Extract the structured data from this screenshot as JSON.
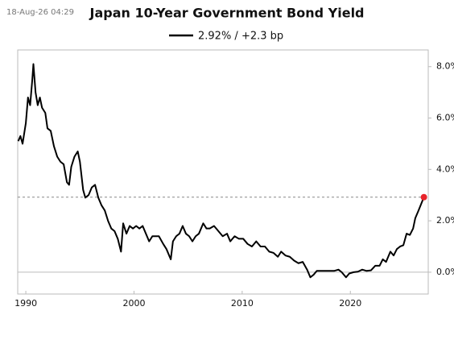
{
  "timestamp": "18-Aug-26 04:29",
  "chart_data": {
    "type": "line",
    "title": "Japan 10-Year Government Bond Yield",
    "series": [
      {
        "name": "2.92% / +2.3 bp",
        "color": "#000000",
        "x": [
          1989.3,
          1989.5,
          1989.7,
          1990.0,
          1990.2,
          1990.4,
          1990.6,
          1990.7,
          1990.9,
          1991.1,
          1991.3,
          1991.5,
          1991.8,
          1992.0,
          1992.3,
          1992.6,
          1992.9,
          1993.2,
          1993.5,
          1993.8,
          1994.0,
          1994.2,
          1994.5,
          1994.8,
          1995.0,
          1995.3,
          1995.5,
          1995.8,
          1996.1,
          1996.4,
          1996.7,
          1997.0,
          1997.3,
          1997.6,
          1997.9,
          1998.2,
          1998.5,
          1998.8,
          1999.0,
          1999.3,
          1999.6,
          1999.9,
          2000.2,
          2000.5,
          2000.8,
          2001.1,
          2001.4,
          2001.7,
          2002.0,
          2002.3,
          2002.7,
          2003.0,
          2003.4,
          2003.6,
          2003.9,
          2004.2,
          2004.5,
          2004.8,
          2005.1,
          2005.4,
          2005.7,
          2006.0,
          2006.4,
          2006.7,
          2007.0,
          2007.4,
          2007.8,
          2008.2,
          2008.6,
          2008.9,
          2009.3,
          2009.7,
          2010.1,
          2010.5,
          2010.9,
          2011.3,
          2011.7,
          2012.1,
          2012.5,
          2012.9,
          2013.3,
          2013.6,
          2014.0,
          2014.4,
          2014.8,
          2015.2,
          2015.6,
          2016.0,
          2016.3,
          2016.6,
          2016.9,
          2017.3,
          2017.7,
          2018.1,
          2018.5,
          2018.9,
          2019.2,
          2019.6,
          2019.9,
          2020.3,
          2020.7,
          2021.1,
          2021.5,
          2021.9,
          2022.3,
          2022.7,
          2023.0,
          2023.3,
          2023.7,
          2024.0,
          2024.3,
          2024.6,
          2024.9,
          2025.2,
          2025.5,
          2025.8,
          2026.0,
          2026.3,
          2026.8
        ],
        "values": [
          5.1,
          5.3,
          5.0,
          5.8,
          6.8,
          6.5,
          7.5,
          8.1,
          7.0,
          6.5,
          6.8,
          6.4,
          6.2,
          5.6,
          5.5,
          4.9,
          4.5,
          4.3,
          4.2,
          3.5,
          3.4,
          4.1,
          4.5,
          4.7,
          4.3,
          3.2,
          2.9,
          3.0,
          3.3,
          3.4,
          2.9,
          2.6,
          2.4,
          2.0,
          1.7,
          1.6,
          1.3,
          0.8,
          1.9,
          1.5,
          1.8,
          1.7,
          1.8,
          1.7,
          1.8,
          1.5,
          1.2,
          1.4,
          1.4,
          1.4,
          1.1,
          0.9,
          0.5,
          1.2,
          1.4,
          1.5,
          1.8,
          1.5,
          1.4,
          1.2,
          1.4,
          1.5,
          1.9,
          1.7,
          1.7,
          1.8,
          1.6,
          1.4,
          1.5,
          1.2,
          1.4,
          1.3,
          1.3,
          1.1,
          1.0,
          1.2,
          1.0,
          1.0,
          0.8,
          0.75,
          0.6,
          0.8,
          0.65,
          0.6,
          0.45,
          0.35,
          0.4,
          0.1,
          -0.2,
          -0.1,
          0.05,
          0.05,
          0.05,
          0.05,
          0.05,
          0.1,
          0.0,
          -0.2,
          -0.05,
          0.0,
          0.02,
          0.1,
          0.05,
          0.07,
          0.25,
          0.25,
          0.5,
          0.4,
          0.8,
          0.65,
          0.9,
          1.0,
          1.05,
          1.5,
          1.45,
          1.7,
          2.1,
          2.4,
          2.92
        ]
      }
    ],
    "last_point_color": "#e8242b",
    "xlim": [
      1989.25,
      2027.2
    ],
    "xticks": [
      1990,
      2000,
      2010,
      2020
    ],
    "ylim": [
      -0.85,
      8.65
    ],
    "yticks": [
      {
        "value": 0,
        "label": "0.0%"
      },
      {
        "value": 2,
        "label": "2.0%"
      },
      {
        "value": 4,
        "label": "4.0%"
      },
      {
        "value": 6,
        "label": "6.0%"
      },
      {
        "value": 8,
        "label": "8.0%"
      }
    ],
    "zero_line": true,
    "last_value_line": true,
    "legend": "top"
  }
}
